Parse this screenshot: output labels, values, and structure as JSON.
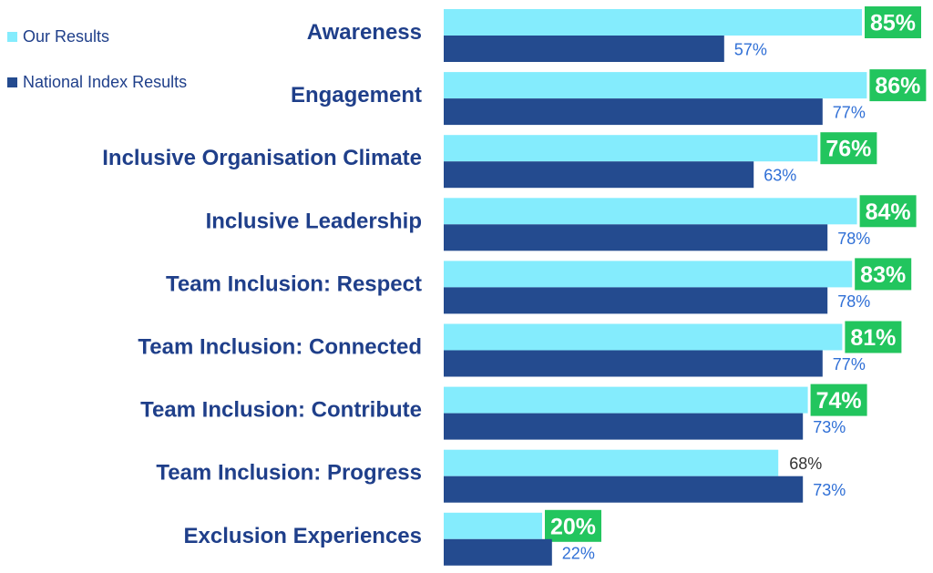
{
  "chart_data": {
    "type": "bar",
    "orientation": "horizontal",
    "categories": [
      "Awareness",
      "Engagement",
      "Inclusive Organisation Climate",
      "Inclusive Leadership",
      "Team Inclusion: Respect",
      "Team Inclusion: Connected",
      "Team Inclusion: Contribute",
      "Team Inclusion: Progress",
      "Exclusion Experiences"
    ],
    "series": [
      {
        "name": "Our Results",
        "color": "#84ecfd",
        "values": [
          85,
          86,
          76,
          84,
          83,
          81,
          74,
          68,
          20
        ],
        "labels": [
          "85%",
          "86%",
          "76%",
          "84%",
          "83%",
          "81%",
          "74%",
          "68%",
          "20%"
        ],
        "highlighted": [
          true,
          true,
          true,
          true,
          true,
          true,
          true,
          false,
          true
        ]
      },
      {
        "name": "National Index Results",
        "color": "#244b8f",
        "values": [
          57,
          77,
          63,
          78,
          78,
          77,
          73,
          73,
          22
        ],
        "labels": [
          "57%",
          "77%",
          "63%",
          "78%",
          "78%",
          "77%",
          "73%",
          "73%",
          "22%"
        ]
      }
    ],
    "xlim": [
      0,
      100
    ],
    "grid": false,
    "legend_position": "top-left",
    "colors": {
      "category_text": "#1f3f8a",
      "highlight_box": "#22c55e",
      "highlight_text": "#ffffff",
      "national_label_text": "#2f6fd6",
      "plain_label_text": "#333333"
    }
  }
}
